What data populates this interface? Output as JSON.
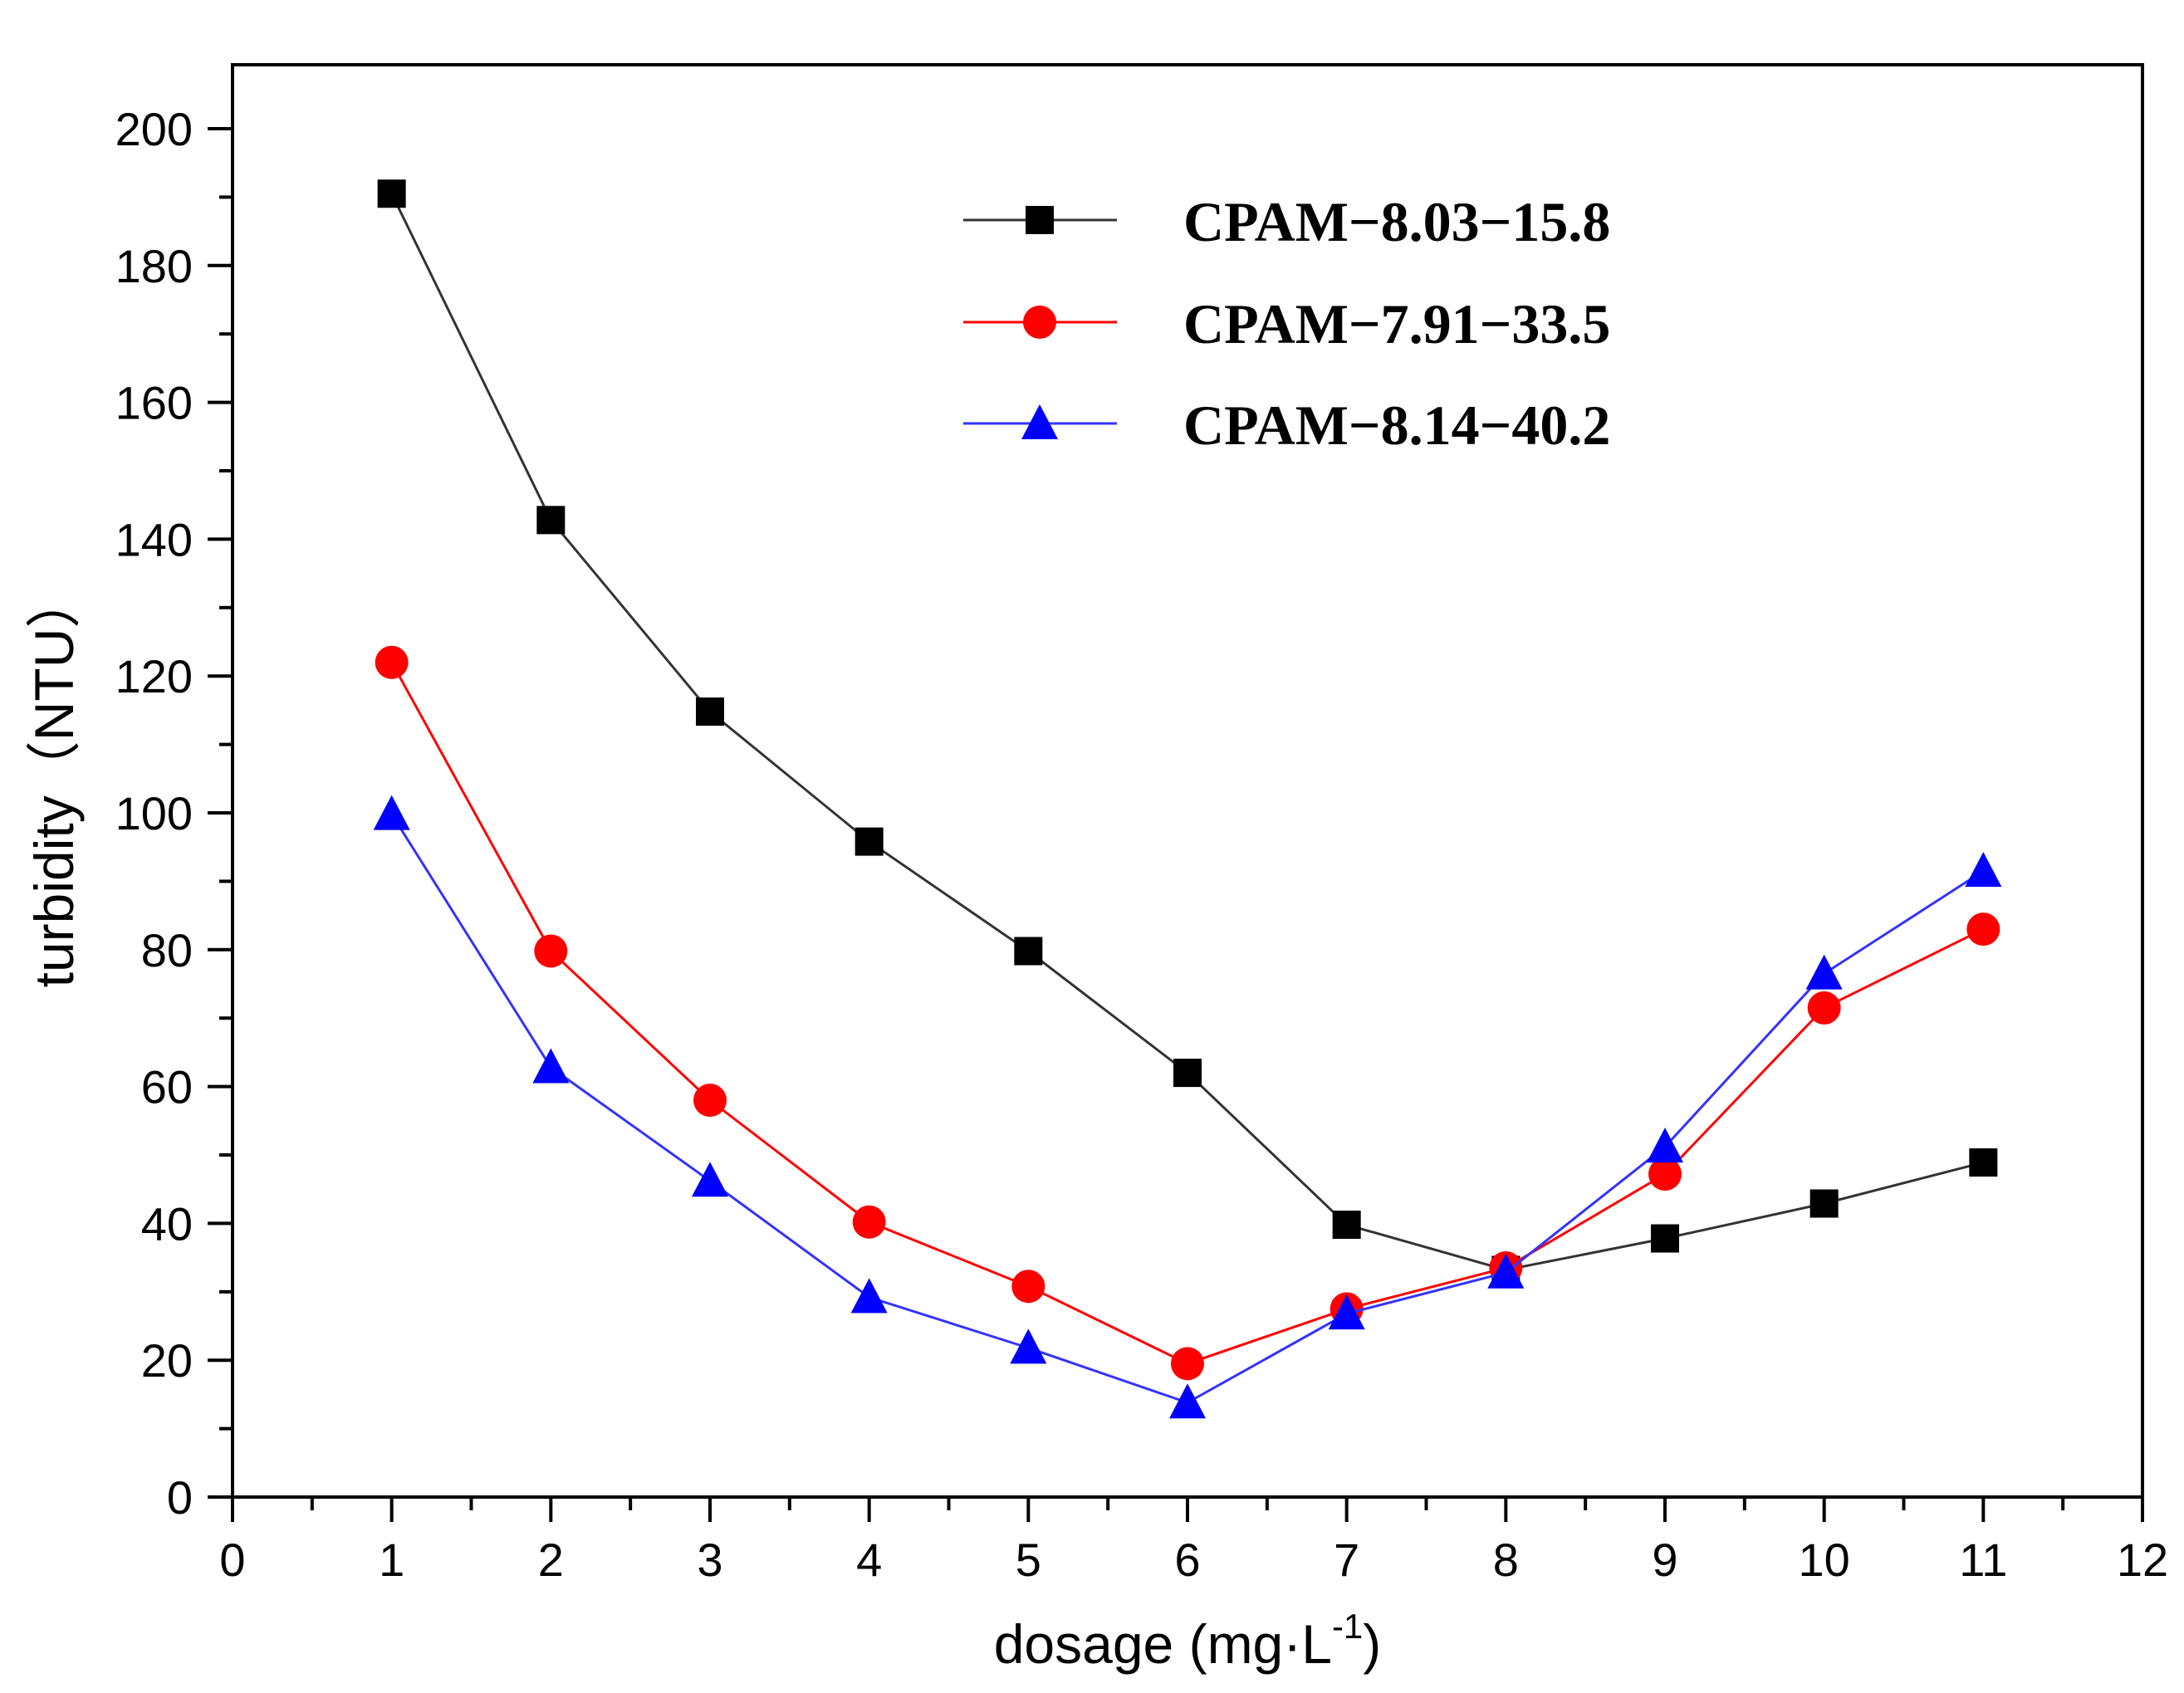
{
  "chart_data": {
    "type": "line",
    "title": "",
    "xlabel": "dosage (mg·L",
    "xlabel_sup": "-1",
    "xlabel_close": ")",
    "ylabel": "turbidity（NTU）",
    "xlim": [
      0,
      12
    ],
    "ylim": [
      0,
      210
    ],
    "xticks": [
      0,
      1,
      2,
      3,
      4,
      5,
      6,
      7,
      8,
      9,
      10,
      11,
      12
    ],
    "yticks": [
      0,
      20,
      40,
      60,
      80,
      100,
      120,
      140,
      160,
      180,
      200
    ],
    "grid": false,
    "legend_position": "top-right",
    "x": [
      1,
      2,
      3,
      4,
      5,
      6,
      7,
      8,
      9,
      10,
      11
    ],
    "series": [
      {
        "name": "CPAM−8.03−15.8",
        "color": "#000000",
        "line_color": "#333333",
        "marker": "square",
        "values": [
          190.5,
          142.8,
          114.8,
          95.8,
          79.8,
          62,
          39.8,
          33.2,
          37.8,
          42.9,
          48.9
        ]
      },
      {
        "name": "CPAM−7.91−33.5",
        "color": "#ff0000",
        "line_color": "#ff0000",
        "marker": "circle",
        "values": [
          122,
          79.8,
          58,
          40.2,
          30.8,
          19.5,
          27.5,
          33.5,
          47.2,
          71.5,
          83
        ]
      },
      {
        "name": "CPAM−8.14−40.2",
        "color": "#0000ff",
        "line_color": "#3333ff",
        "marker": "triangle",
        "values": [
          99.8,
          62.8,
          46.2,
          29.2,
          21.8,
          13.8,
          26.8,
          32.8,
          51.2,
          76.5,
          91.5
        ]
      }
    ]
  }
}
